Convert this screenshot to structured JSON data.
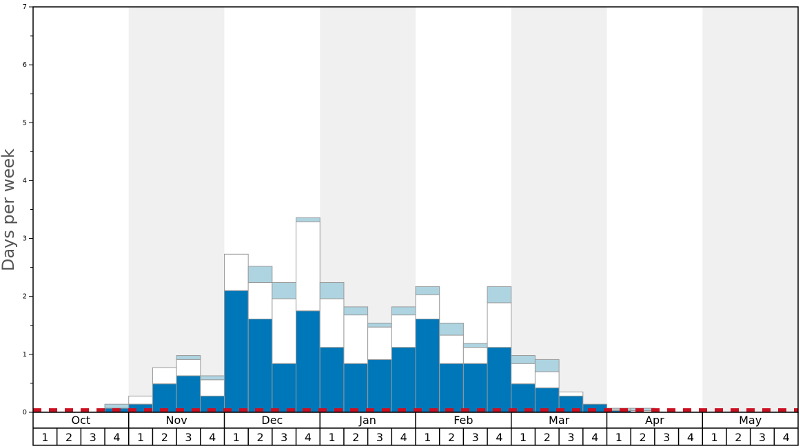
{
  "chart_data": {
    "type": "bar",
    "ylabel": "Days per week",
    "xlabel": "",
    "ylim": [
      0,
      7
    ],
    "yticks": [
      "0",
      "1",
      "2",
      "3",
      "4",
      "5",
      "6",
      "7"
    ],
    "grid": false,
    "months": [
      "Oct",
      "Nov",
      "Dec",
      "Jan",
      "Feb",
      "Mar",
      "Apr",
      "May"
    ],
    "week_labels": [
      "1",
      "2",
      "3",
      "4"
    ],
    "threshold": 0.04,
    "colors": {
      "dark": "#0077b8",
      "mid": "#ffffff",
      "light": "#add4e0",
      "threshold": "#cc1122",
      "shade": "#f0f0f0",
      "bar_edge": "#9a9a9a"
    },
    "categories": [
      "Oct 1",
      "Oct 2",
      "Oct 3",
      "Oct 4",
      "Nov 1",
      "Nov 2",
      "Nov 3",
      "Nov 4",
      "Dec 1",
      "Dec 2",
      "Dec 3",
      "Dec 4",
      "Jan 1",
      "Jan 2",
      "Jan 3",
      "Jan 4",
      "Feb 1",
      "Feb 2",
      "Feb 3",
      "Feb 4",
      "Mar 1",
      "Mar 2",
      "Mar 3",
      "Mar 4",
      "Apr 1",
      "Apr 2",
      "Apr 3",
      "Apr 4",
      "May 1",
      "May 2",
      "May 3",
      "May 4"
    ],
    "series": [
      {
        "values": [
          0,
          0,
          0,
          0.07,
          0.14,
          0.49,
          0.63,
          0.28,
          2.1,
          1.61,
          0.84,
          1.75,
          1.12,
          0.84,
          0.91,
          1.12,
          1.61,
          0.84,
          0.84,
          1.12,
          0.49,
          0.42,
          0.28,
          0.14,
          0.03,
          0,
          0,
          0,
          0,
          0,
          0,
          0
        ]
      },
      {
        "values": [
          0,
          0,
          0,
          0.07,
          0.28,
          0.77,
          0.91,
          0.56,
          2.73,
          2.24,
          1.96,
          3.29,
          1.96,
          1.68,
          1.47,
          1.68,
          2.03,
          1.33,
          1.12,
          1.89,
          0.84,
          0.7,
          0.35,
          0.14,
          0.05,
          0.03,
          0,
          0,
          0,
          0,
          0,
          0
        ]
      },
      {
        "values": [
          0,
          0,
          0,
          0.14,
          0.28,
          0.77,
          0.98,
          0.63,
          2.73,
          2.52,
          2.24,
          3.36,
          2.24,
          1.82,
          1.54,
          1.82,
          2.17,
          1.54,
          1.19,
          2.17,
          0.98,
          0.91,
          0.35,
          0.14,
          0.07,
          0.07,
          0,
          0,
          0,
          0,
          0,
          0
        ]
      }
    ]
  }
}
